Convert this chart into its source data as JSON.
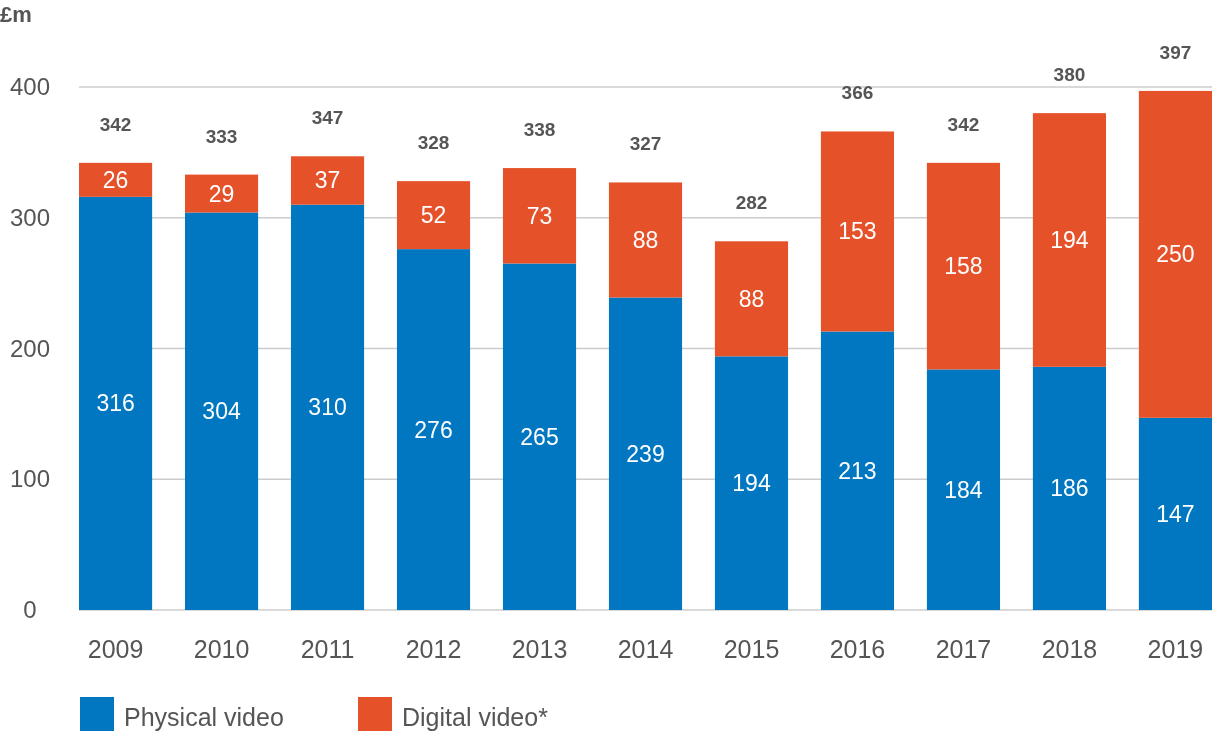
{
  "chart_data": {
    "type": "bar",
    "ylabel": "£m",
    "categories": [
      "2009",
      "2010",
      "2011",
      "2012",
      "2013",
      "2014",
      "2015",
      "2016",
      "2017",
      "2018",
      "2019"
    ],
    "stacked": true,
    "series": [
      {
        "name": "Physical video",
        "color": "#0077c0",
        "values": [
          316,
          304,
          310,
          276,
          265,
          239,
          194,
          213,
          184,
          186,
          147
        ]
      },
      {
        "name": "Digital video*",
        "color": "#e5522a",
        "values": [
          26,
          29,
          37,
          52,
          73,
          88,
          88,
          153,
          158,
          194,
          250
        ]
      }
    ],
    "totals": [
      "342",
      "333",
      "347",
      "328",
      "338",
      "327",
      "282",
      "366",
      "342",
      "380",
      "397"
    ],
    "data_labels": true,
    "ylim": [
      0,
      400
    ],
    "yticks": [
      0,
      100,
      200,
      300,
      400
    ],
    "grid": "y",
    "legend": "bottom left"
  }
}
